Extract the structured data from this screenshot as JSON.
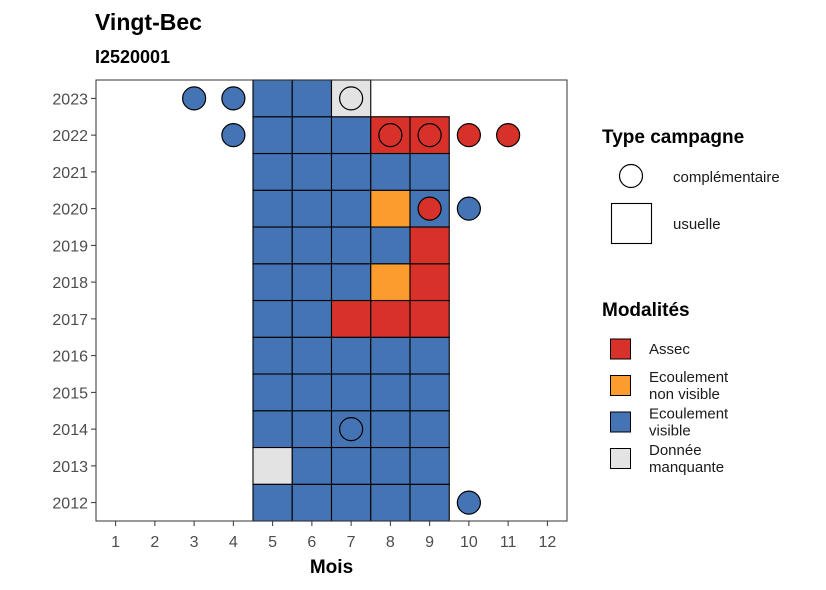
{
  "chart_data": {
    "type": "heatmap",
    "title": "Vingt-Bec",
    "subtitle": "I2520001",
    "xlabel": "Mois",
    "ylabel": "",
    "x_ticks": [
      1,
      2,
      3,
      4,
      5,
      6,
      7,
      8,
      9,
      10,
      11,
      12
    ],
    "y_ticks": [
      2012,
      2013,
      2014,
      2015,
      2016,
      2017,
      2018,
      2019,
      2020,
      2021,
      2022,
      2023
    ],
    "xlim": [
      0.5,
      12.5
    ],
    "ylim": [
      2011.5,
      2023.5
    ],
    "grid": false,
    "legend_placement": "right",
    "colors": {
      "Assec": "#d7312a",
      "Ecoulement non visible": "#fc9c2e",
      "Ecoulement visible": "#4574b4",
      "Donnée manquante": "#e3e3e3"
    },
    "usuelle": [
      {
        "year": 2012,
        "month": 5,
        "modalite": "Ecoulement visible"
      },
      {
        "year": 2012,
        "month": 6,
        "modalite": "Ecoulement visible"
      },
      {
        "year": 2012,
        "month": 7,
        "modalite": "Ecoulement visible"
      },
      {
        "year": 2012,
        "month": 8,
        "modalite": "Ecoulement visible"
      },
      {
        "year": 2012,
        "month": 9,
        "modalite": "Ecoulement visible"
      },
      {
        "year": 2013,
        "month": 5,
        "modalite": "Donnée manquante"
      },
      {
        "year": 2013,
        "month": 6,
        "modalite": "Ecoulement visible"
      },
      {
        "year": 2013,
        "month": 7,
        "modalite": "Ecoulement visible"
      },
      {
        "year": 2013,
        "month": 8,
        "modalite": "Ecoulement visible"
      },
      {
        "year": 2013,
        "month": 9,
        "modalite": "Ecoulement visible"
      },
      {
        "year": 2014,
        "month": 5,
        "modalite": "Ecoulement visible"
      },
      {
        "year": 2014,
        "month": 6,
        "modalite": "Ecoulement visible"
      },
      {
        "year": 2014,
        "month": 7,
        "modalite": "Ecoulement visible"
      },
      {
        "year": 2014,
        "month": 8,
        "modalite": "Ecoulement visible"
      },
      {
        "year": 2014,
        "month": 9,
        "modalite": "Ecoulement visible"
      },
      {
        "year": 2015,
        "month": 5,
        "modalite": "Ecoulement visible"
      },
      {
        "year": 2015,
        "month": 6,
        "modalite": "Ecoulement visible"
      },
      {
        "year": 2015,
        "month": 7,
        "modalite": "Ecoulement visible"
      },
      {
        "year": 2015,
        "month": 8,
        "modalite": "Ecoulement visible"
      },
      {
        "year": 2015,
        "month": 9,
        "modalite": "Ecoulement visible"
      },
      {
        "year": 2016,
        "month": 5,
        "modalite": "Ecoulement visible"
      },
      {
        "year": 2016,
        "month": 6,
        "modalite": "Ecoulement visible"
      },
      {
        "year": 2016,
        "month": 7,
        "modalite": "Ecoulement visible"
      },
      {
        "year": 2016,
        "month": 8,
        "modalite": "Ecoulement visible"
      },
      {
        "year": 2016,
        "month": 9,
        "modalite": "Ecoulement visible"
      },
      {
        "year": 2017,
        "month": 5,
        "modalite": "Ecoulement visible"
      },
      {
        "year": 2017,
        "month": 6,
        "modalite": "Ecoulement visible"
      },
      {
        "year": 2017,
        "month": 7,
        "modalite": "Assec"
      },
      {
        "year": 2017,
        "month": 8,
        "modalite": "Assec"
      },
      {
        "year": 2017,
        "month": 9,
        "modalite": "Assec"
      },
      {
        "year": 2018,
        "month": 5,
        "modalite": "Ecoulement visible"
      },
      {
        "year": 2018,
        "month": 6,
        "modalite": "Ecoulement visible"
      },
      {
        "year": 2018,
        "month": 7,
        "modalite": "Ecoulement visible"
      },
      {
        "year": 2018,
        "month": 8,
        "modalite": "Ecoulement non visible"
      },
      {
        "year": 2018,
        "month": 9,
        "modalite": "Assec"
      },
      {
        "year": 2019,
        "month": 5,
        "modalite": "Ecoulement visible"
      },
      {
        "year": 2019,
        "month": 6,
        "modalite": "Ecoulement visible"
      },
      {
        "year": 2019,
        "month": 7,
        "modalite": "Ecoulement visible"
      },
      {
        "year": 2019,
        "month": 8,
        "modalite": "Ecoulement visible"
      },
      {
        "year": 2019,
        "month": 9,
        "modalite": "Assec"
      },
      {
        "year": 2020,
        "month": 5,
        "modalite": "Ecoulement visible"
      },
      {
        "year": 2020,
        "month": 6,
        "modalite": "Ecoulement visible"
      },
      {
        "year": 2020,
        "month": 7,
        "modalite": "Ecoulement visible"
      },
      {
        "year": 2020,
        "month": 8,
        "modalite": "Ecoulement non visible"
      },
      {
        "year": 2020,
        "month": 9,
        "modalite": "Ecoulement visible"
      },
      {
        "year": 2021,
        "month": 5,
        "modalite": "Ecoulement visible"
      },
      {
        "year": 2021,
        "month": 6,
        "modalite": "Ecoulement visible"
      },
      {
        "year": 2021,
        "month": 7,
        "modalite": "Ecoulement visible"
      },
      {
        "year": 2021,
        "month": 8,
        "modalite": "Ecoulement visible"
      },
      {
        "year": 2021,
        "month": 9,
        "modalite": "Ecoulement visible"
      },
      {
        "year": 2022,
        "month": 5,
        "modalite": "Ecoulement visible"
      },
      {
        "year": 2022,
        "month": 6,
        "modalite": "Ecoulement visible"
      },
      {
        "year": 2022,
        "month": 7,
        "modalite": "Ecoulement visible"
      },
      {
        "year": 2022,
        "month": 8,
        "modalite": "Assec"
      },
      {
        "year": 2022,
        "month": 9,
        "modalite": "Assec"
      },
      {
        "year": 2023,
        "month": 5,
        "modalite": "Ecoulement visible"
      },
      {
        "year": 2023,
        "month": 6,
        "modalite": "Ecoulement visible"
      },
      {
        "year": 2023,
        "month": 7,
        "modalite": "Donnée manquante"
      }
    ],
    "complementaire": [
      {
        "year": 2012,
        "month": 10,
        "modalite": "Ecoulement visible"
      },
      {
        "year": 2014,
        "month": 7,
        "modalite": "Ecoulement visible"
      },
      {
        "year": 2020,
        "month": 9,
        "modalite": "Assec"
      },
      {
        "year": 2020,
        "month": 10,
        "modalite": "Ecoulement visible"
      },
      {
        "year": 2022,
        "month": 4,
        "modalite": "Ecoulement visible"
      },
      {
        "year": 2022,
        "month": 8,
        "modalite": "Assec"
      },
      {
        "year": 2022,
        "month": 9,
        "modalite": "Assec"
      },
      {
        "year": 2022,
        "month": 10,
        "modalite": "Assec"
      },
      {
        "year": 2022,
        "month": 11,
        "modalite": "Assec"
      },
      {
        "year": 2023,
        "month": 3,
        "modalite": "Ecoulement visible"
      },
      {
        "year": 2023,
        "month": 4,
        "modalite": "Ecoulement visible"
      },
      {
        "year": 2023,
        "month": 7,
        "modalite": "Donnée manquante"
      }
    ],
    "legend": {
      "type_title": "Type campagne",
      "type_items": [
        "complémentaire",
        "usuelle"
      ],
      "modalites_title": "Modalités",
      "modalites_items": [
        {
          "key": "Assec",
          "lines": [
            "Assec"
          ]
        },
        {
          "key": "Ecoulement non visible",
          "lines": [
            "Ecoulement",
            "non visible"
          ]
        },
        {
          "key": "Ecoulement visible",
          "lines": [
            "Ecoulement",
            "visible"
          ]
        },
        {
          "key": "Donnée manquante",
          "lines": [
            "Donnée",
            "manquante"
          ]
        }
      ]
    }
  }
}
